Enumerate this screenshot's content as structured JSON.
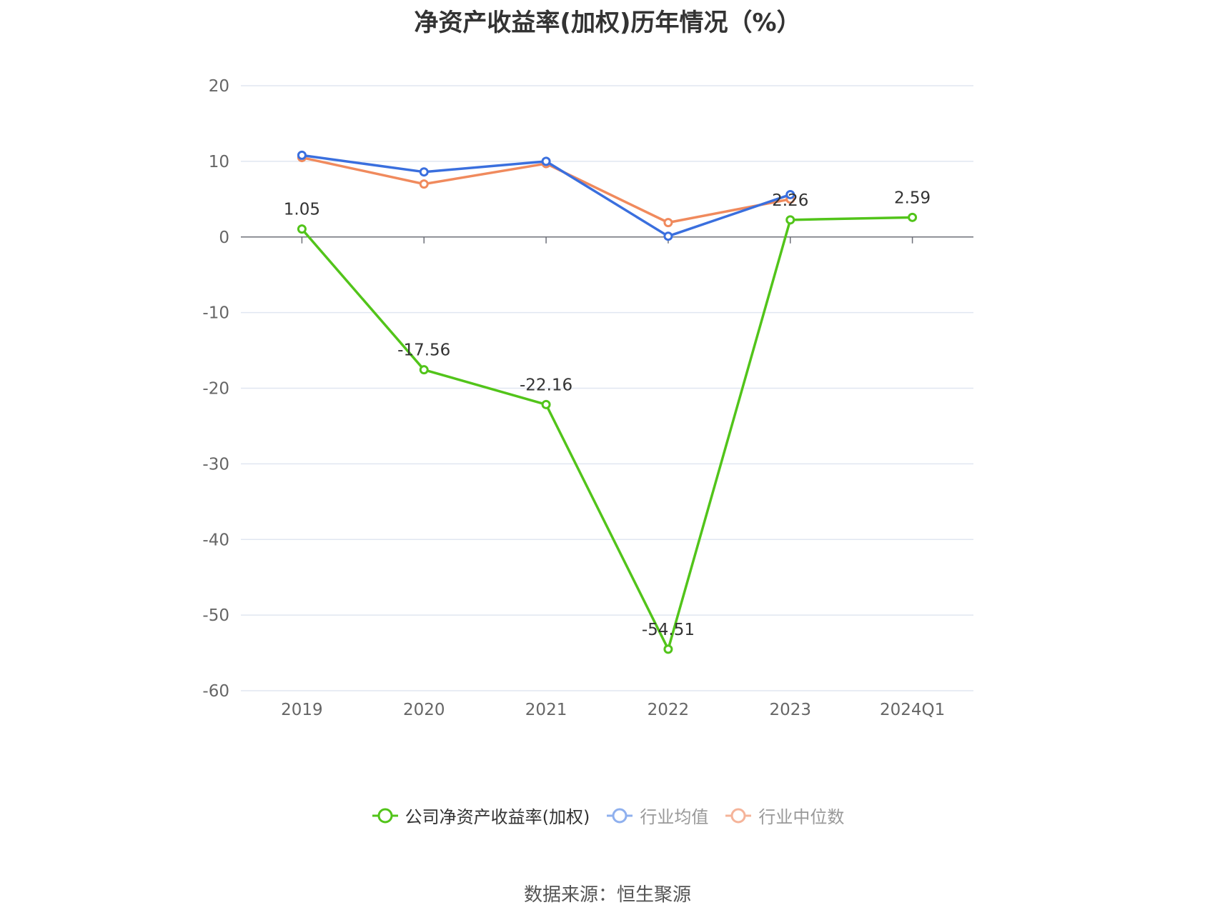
{
  "chart_data": {
    "type": "line",
    "title": "净资产收益率(加权)历年情况（%）",
    "categories": [
      "2019",
      "2020",
      "2021",
      "2022",
      "2023",
      "2024Q1"
    ],
    "ylim": [
      -60,
      20
    ],
    "yticks": [
      20,
      10,
      0,
      -10,
      -20,
      -30,
      -40,
      -50,
      -60
    ],
    "grid": true,
    "legend_position": "bottom-center",
    "series": [
      {
        "name": "公司净资产收益率(加权)",
        "color": "#52c41a",
        "values": [
          1.05,
          -17.56,
          -22.16,
          -54.51,
          2.26,
          2.59
        ],
        "labels": [
          "1.05",
          "-17.56",
          "-22.16",
          "-54.51",
          "2.26",
          "2.59"
        ]
      },
      {
        "name": "行业均值",
        "color": "#3a6fde",
        "values": [
          10.8,
          8.6,
          10.0,
          0.1,
          5.6,
          null
        ]
      },
      {
        "name": "行业中位数",
        "color": "#f08a5d",
        "values": [
          10.5,
          7.0,
          9.7,
          1.9,
          5.0,
          null
        ]
      }
    ]
  },
  "legend": [
    {
      "label": "公司净资产收益率(加权)",
      "color": "#52c41a",
      "text_color": "#333333"
    },
    {
      "label": "行业均值",
      "color": "#8fb0ee",
      "text_color": "#999999"
    },
    {
      "label": "行业中位数",
      "color": "#f5b49a",
      "text_color": "#999999"
    }
  ],
  "source": "数据来源：恒生聚源"
}
